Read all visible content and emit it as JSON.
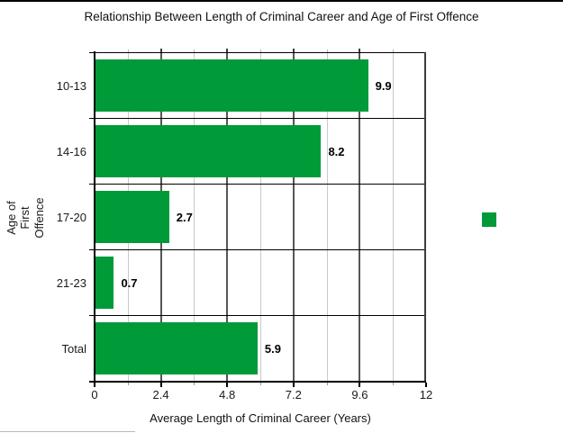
{
  "page": {
    "background": "#ffffff"
  },
  "chart_data": {
    "type": "bar",
    "orientation": "horizontal",
    "title": "Relationship Between Length of Criminal Career and Age of First Offence",
    "categories": [
      "10-13",
      "14-16",
      "17-20",
      "21-23",
      "Total"
    ],
    "values": [
      9.9,
      8.2,
      2.7,
      0.7,
      5.9
    ],
    "value_labels": [
      "9.9",
      "8.2",
      "2.7",
      "0.7",
      "5.9"
    ],
    "xlabel": "Average Length of Criminal Career (Years)",
    "ylabel": "Age of First Offence",
    "xlim": [
      0,
      12
    ],
    "x_ticks": [
      0,
      2.4,
      4.8,
      7.2,
      9.6,
      12
    ],
    "x_tick_labels": [
      "0",
      "2.4",
      "4.8",
      "7.2",
      "9.6",
      "12"
    ],
    "x_minor_ticks": [
      1.2,
      3.6,
      6.0,
      8.4,
      10.8
    ],
    "grid": "vertical major and minor gridlines, horizontal band separators",
    "legend": {
      "position": "right-center",
      "entries": [
        {
          "label": "",
          "swatch_color": "#009A39"
        }
      ]
    },
    "bar_color": "#009A39"
  }
}
